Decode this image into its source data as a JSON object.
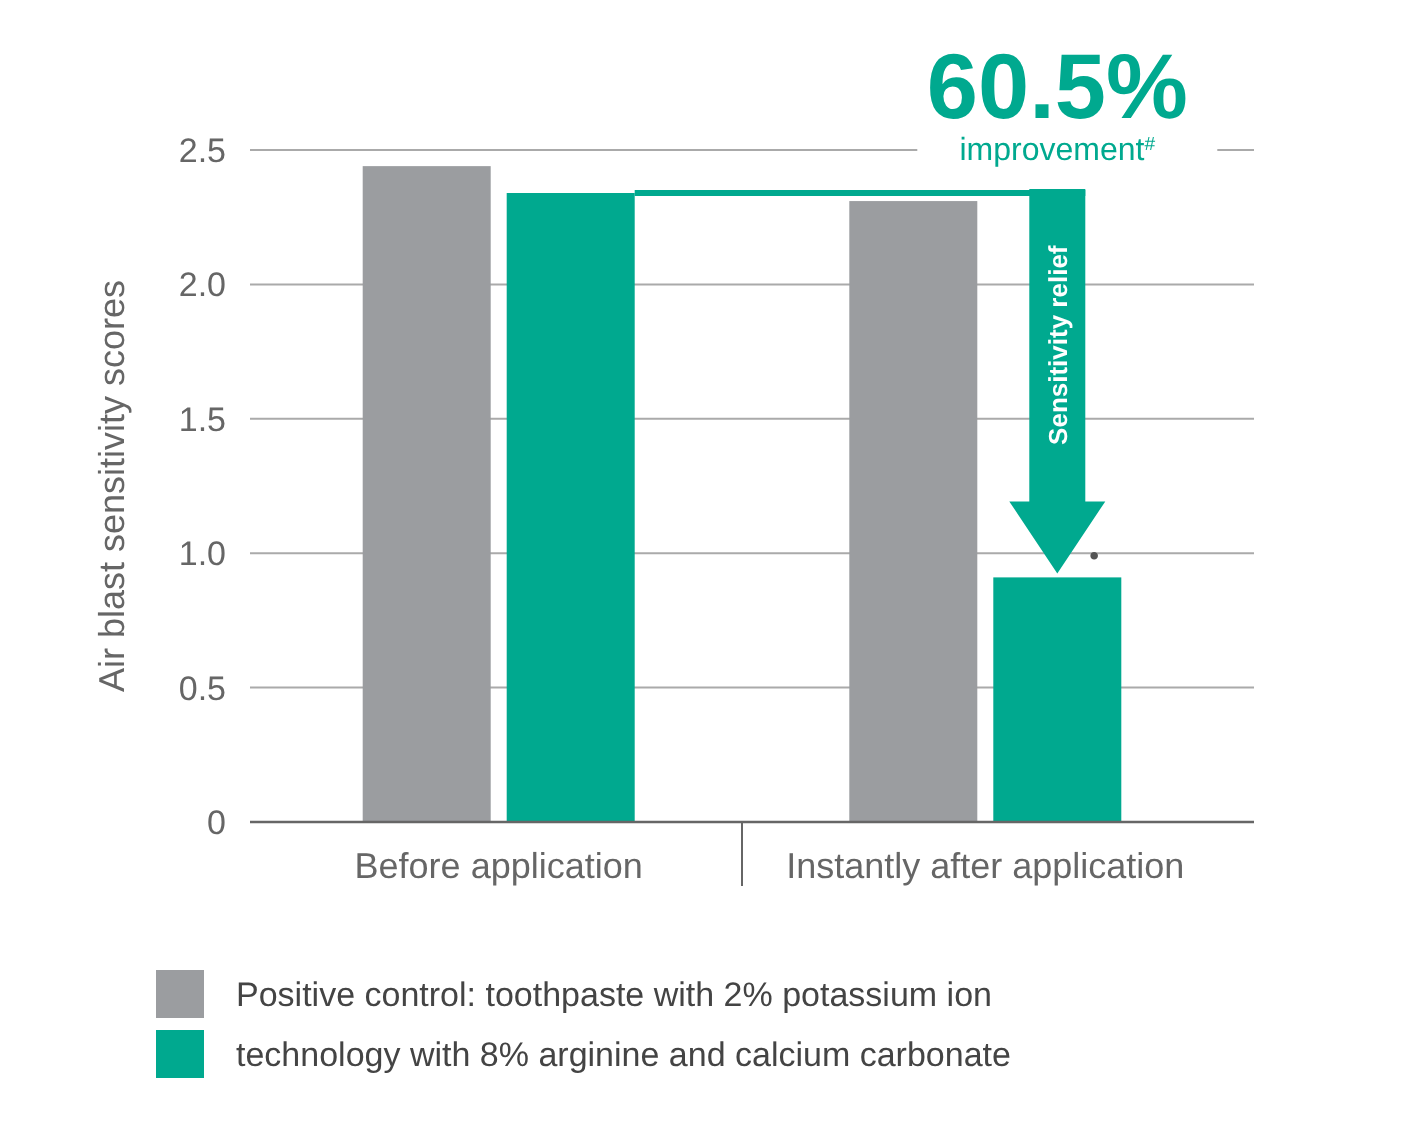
{
  "chart_data": {
    "type": "bar",
    "ylabel": "Air blast sensitivity scores",
    "categories": [
      "Before application",
      "Instantly after application"
    ],
    "series": [
      {
        "name": "Positive control: toothpaste with 2% potassium ion",
        "color": "#9b9da0",
        "values": [
          2.44,
          2.31
        ]
      },
      {
        "name": "technology with 8% arginine and calcium carbonate",
        "color": "#00a98f",
        "values": [
          2.34,
          0.91
        ]
      }
    ],
    "ylim": [
      0,
      2.5
    ],
    "yticks": [
      0,
      {
        "value": 0.5,
        "label": "0.5"
      },
      {
        "value": 1,
        "label": "1.0"
      },
      {
        "value": 1.5,
        "label": "1.5"
      },
      {
        "value": 2,
        "label": "2.0"
      },
      {
        "value": 2.5,
        "label": "2.5"
      }
    ],
    "grid": "y",
    "legend": "bottom",
    "annotations": [
      "60.5%",
      "improvement$^{#}$",
      "Sensitivity relief",
      "•"
    ]
  }
}
